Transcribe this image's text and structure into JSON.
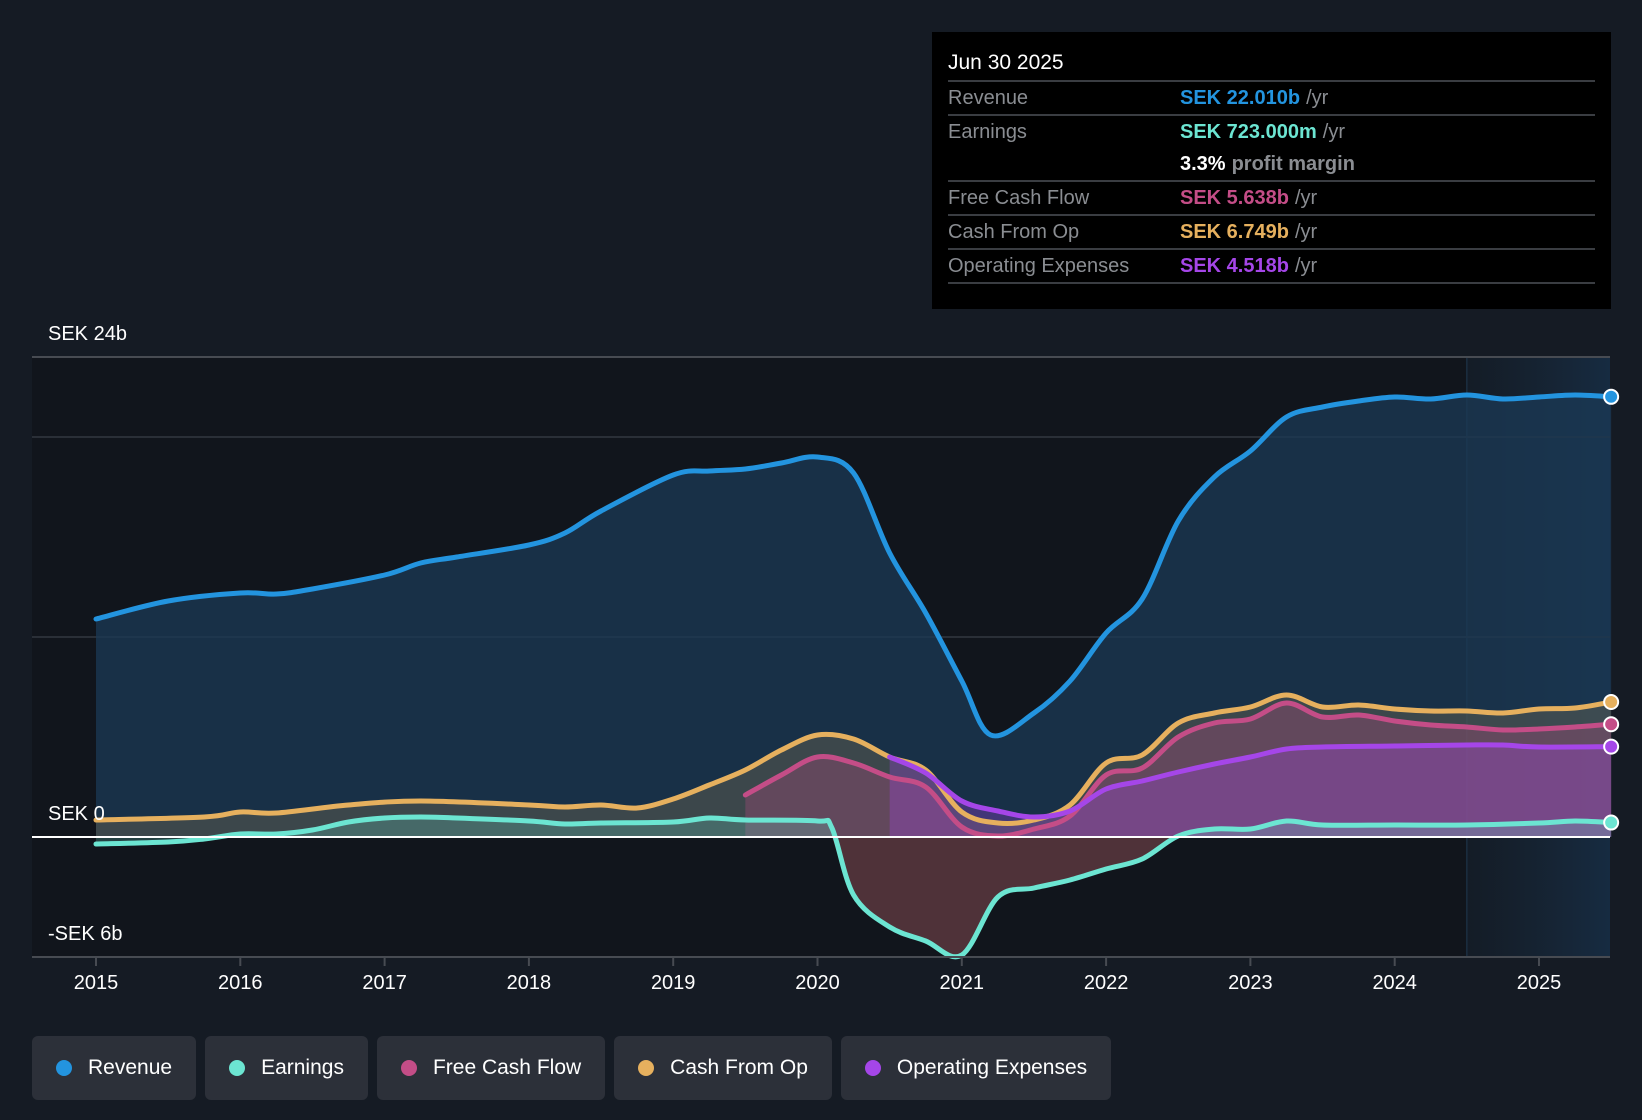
{
  "tooltip": {
    "date": "Jun 30 2025",
    "rows": [
      {
        "label": "Revenue",
        "value": "SEK 22.010b",
        "unit": "/yr",
        "color": "#2394df"
      },
      {
        "label": "Earnings",
        "value": "SEK 723.000m",
        "unit": "/yr",
        "color": "#6ce5d2"
      },
      {
        "label": "",
        "value": "3.3%",
        "unit": "profit margin",
        "color": "#ffffff"
      },
      {
        "label": "Free Cash Flow",
        "value": "SEK 5.638b",
        "unit": "/yr",
        "color": "#c44d87"
      },
      {
        "label": "Cash From Op",
        "value": "SEK 6.749b",
        "unit": "/yr",
        "color": "#e6b05e"
      },
      {
        "label": "Operating Expenses",
        "value": "SEK 4.518b",
        "unit": "/yr",
        "color": "#a546e8"
      }
    ]
  },
  "legend": [
    {
      "label": "Revenue",
      "color": "#2394df"
    },
    {
      "label": "Earnings",
      "color": "#6ce5d2"
    },
    {
      "label": "Free Cash Flow",
      "color": "#c44d87"
    },
    {
      "label": "Cash From Op",
      "color": "#e6b05e"
    },
    {
      "label": "Operating Expenses",
      "color": "#a546e8"
    }
  ],
  "chart_data": {
    "type": "area",
    "title": "",
    "xlabel": "",
    "ylabel": "",
    "units": "SEK billions",
    "xlim": [
      2014.55,
      2025.5
    ],
    "ylim": [
      -6,
      24
    ],
    "y_tick_labels": [
      {
        "value": 24,
        "label": "SEK 24b"
      },
      {
        "value": 0,
        "label": "SEK 0"
      },
      {
        "value": -6,
        "label": "-SEK 6b"
      }
    ],
    "y_gridlines": [
      24,
      20,
      10,
      0
    ],
    "x_ticks": [
      2015,
      2016,
      2017,
      2018,
      2019,
      2020,
      2021,
      2022,
      2023,
      2024,
      2025
    ],
    "x_tick_labels": [
      "2015",
      "2016",
      "2017",
      "2018",
      "2019",
      "2020",
      "2021",
      "2022",
      "2023",
      "2024",
      "2025"
    ],
    "highlight_range": [
      2024.5,
      2025.5
    ],
    "legend_position": "bottom",
    "series": [
      {
        "name": "Revenue",
        "color": "#2394df",
        "x": [
          2015.0,
          2015.5,
          2016.0,
          2016.25,
          2016.5,
          2017.0,
          2017.25,
          2017.5,
          2018.0,
          2018.25,
          2018.5,
          2019.0,
          2019.25,
          2019.5,
          2019.75,
          2020.0,
          2020.25,
          2020.5,
          2020.75,
          2021.0,
          2021.2,
          2021.5,
          2021.75,
          2022.0,
          2022.25,
          2022.5,
          2022.75,
          2023.0,
          2023.25,
          2023.5,
          2023.75,
          2024.0,
          2024.25,
          2024.5,
          2024.75,
          2025.0,
          2025.25,
          2025.5
        ],
        "values": [
          10.9,
          11.8,
          12.2,
          12.15,
          12.4,
          13.1,
          13.7,
          14.0,
          14.6,
          15.2,
          16.3,
          18.1,
          18.3,
          18.4,
          18.7,
          19.0,
          18.2,
          14.2,
          11.2,
          7.8,
          5.1,
          6.2,
          7.8,
          10.2,
          11.9,
          15.8,
          18.0,
          19.3,
          21.0,
          21.5,
          21.8,
          22.0,
          21.9,
          22.1,
          21.9,
          22.0,
          22.1,
          22.01
        ]
      },
      {
        "name": "Earnings",
        "color": "#6ce5d2",
        "x": [
          2015.0,
          2015.5,
          2015.75,
          2016.0,
          2016.25,
          2016.5,
          2016.75,
          2017.0,
          2017.25,
          2017.5,
          2018.0,
          2018.25,
          2018.5,
          2019.0,
          2019.25,
          2019.5,
          2020.0,
          2020.1,
          2020.25,
          2020.5,
          2020.75,
          2021.0,
          2021.25,
          2021.5,
          2021.75,
          2022.0,
          2022.25,
          2022.5,
          2022.75,
          2023.0,
          2023.25,
          2023.5,
          2024.0,
          2024.5,
          2025.0,
          2025.25,
          2025.5
        ],
        "values": [
          -0.35,
          -0.25,
          -0.1,
          0.15,
          0.15,
          0.35,
          0.75,
          0.95,
          1.0,
          0.95,
          0.8,
          0.65,
          0.7,
          0.75,
          0.95,
          0.85,
          0.8,
          0.45,
          -2.9,
          -4.5,
          -5.2,
          -5.9,
          -3.0,
          -2.55,
          -2.15,
          -1.6,
          -1.1,
          0.05,
          0.4,
          0.4,
          0.8,
          0.6,
          0.6,
          0.6,
          0.7,
          0.8,
          0.723
        ]
      },
      {
        "name": "Free Cash Flow",
        "color": "#c44d87",
        "x": [
          2019.5,
          2019.75,
          2020.0,
          2020.25,
          2020.5,
          2020.75,
          2021.0,
          2021.25,
          2021.5,
          2021.75,
          2022.0,
          2022.25,
          2022.5,
          2022.75,
          2023.0,
          2023.25,
          2023.5,
          2023.75,
          2024.0,
          2024.25,
          2024.5,
          2024.75,
          2025.0,
          2025.25,
          2025.5
        ],
        "values": [
          2.1,
          3.1,
          4.0,
          3.7,
          3.0,
          2.5,
          0.5,
          0.05,
          0.4,
          1.05,
          3.1,
          3.45,
          5.0,
          5.7,
          5.9,
          6.7,
          6.0,
          6.1,
          5.8,
          5.6,
          5.5,
          5.35,
          5.4,
          5.5,
          5.638
        ]
      },
      {
        "name": "Cash From Op",
        "color": "#e6b05e",
        "x": [
          2015.0,
          2015.75,
          2016.0,
          2016.25,
          2016.75,
          2017.25,
          2018.0,
          2018.25,
          2018.5,
          2018.75,
          2019.0,
          2019.25,
          2019.5,
          2019.75,
          2020.0,
          2020.25,
          2020.5,
          2020.75,
          2021.0,
          2021.25,
          2021.5,
          2021.75,
          2022.0,
          2022.25,
          2022.5,
          2022.75,
          2023.0,
          2023.25,
          2023.5,
          2023.75,
          2024.0,
          2024.25,
          2024.5,
          2024.75,
          2025.0,
          2025.25,
          2025.5
        ],
        "values": [
          0.85,
          1.0,
          1.25,
          1.2,
          1.6,
          1.8,
          1.6,
          1.5,
          1.6,
          1.45,
          1.9,
          2.6,
          3.35,
          4.35,
          5.1,
          4.9,
          4.0,
          3.35,
          1.25,
          0.7,
          0.85,
          1.6,
          3.7,
          4.1,
          5.7,
          6.2,
          6.5,
          7.1,
          6.5,
          6.6,
          6.4,
          6.3,
          6.3,
          6.2,
          6.4,
          6.45,
          6.749
        ]
      },
      {
        "name": "Operating Expenses",
        "color": "#a546e8",
        "x": [
          2020.5,
          2020.75,
          2021.0,
          2021.25,
          2021.5,
          2021.75,
          2022.0,
          2022.25,
          2022.5,
          2022.75,
          2023.0,
          2023.25,
          2023.5,
          2024.0,
          2024.5,
          2024.75,
          2025.0,
          2025.5
        ],
        "values": [
          4.0,
          3.2,
          1.8,
          1.3,
          1.0,
          1.3,
          2.4,
          2.8,
          3.25,
          3.65,
          4.0,
          4.4,
          4.5,
          4.55,
          4.6,
          4.6,
          4.5,
          4.518
        ]
      }
    ]
  }
}
